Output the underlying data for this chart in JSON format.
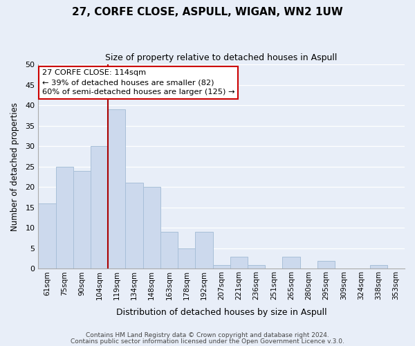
{
  "title": "27, CORFE CLOSE, ASPULL, WIGAN, WN2 1UW",
  "subtitle": "Size of property relative to detached houses in Aspull",
  "xlabel": "Distribution of detached houses by size in Aspull",
  "ylabel": "Number of detached properties",
  "bar_labels": [
    "61sqm",
    "75sqm",
    "90sqm",
    "104sqm",
    "119sqm",
    "134sqm",
    "148sqm",
    "163sqm",
    "178sqm",
    "192sqm",
    "207sqm",
    "221sqm",
    "236sqm",
    "251sqm",
    "265sqm",
    "280sqm",
    "295sqm",
    "309sqm",
    "324sqm",
    "338sqm",
    "353sqm"
  ],
  "bar_values": [
    16,
    25,
    24,
    30,
    39,
    21,
    20,
    9,
    5,
    9,
    1,
    3,
    1,
    0,
    3,
    0,
    2,
    0,
    0,
    1,
    0
  ],
  "bar_color": "#ccd9ed",
  "bar_edge_color": "#a8bfd8",
  "vline_color": "#aa0000",
  "ylim": [
    0,
    50
  ],
  "yticks": [
    0,
    5,
    10,
    15,
    20,
    25,
    30,
    35,
    40,
    45,
    50
  ],
  "annotation_title": "27 CORFE CLOSE: 114sqm",
  "annotation_line1": "← 39% of detached houses are smaller (82)",
  "annotation_line2": "60% of semi-detached houses are larger (125) →",
  "annotation_box_color": "#ffffff",
  "annotation_box_edge": "#cc0000",
  "footer1": "Contains HM Land Registry data © Crown copyright and database right 2024.",
  "footer2": "Contains public sector information licensed under the Open Government Licence v.3.0.",
  "bg_color": "#e8eef8",
  "grid_color": "#ffffff"
}
